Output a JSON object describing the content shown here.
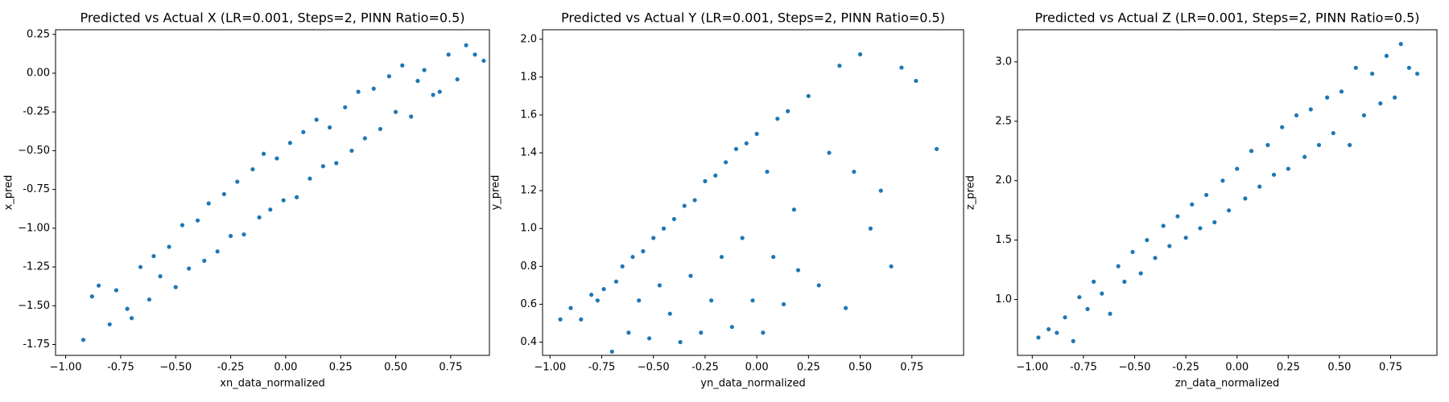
{
  "chart_data": [
    {
      "type": "scatter",
      "title": "Predicted vs Actual X (LR=0.001, Steps=2, PINN Ratio=0.5)",
      "xlabel": "xn_data_normalized",
      "ylabel": "x_pred",
      "color": "#1f77b4",
      "x": [
        -0.92,
        -0.88,
        -0.85,
        -0.8,
        -0.77,
        -0.72,
        -0.7,
        -0.66,
        -0.62,
        -0.6,
        -0.57,
        -0.53,
        -0.5,
        -0.47,
        -0.44,
        -0.4,
        -0.37,
        -0.35,
        -0.31,
        -0.28,
        -0.25,
        -0.22,
        -0.19,
        -0.15,
        -0.12,
        -0.1,
        -0.07,
        -0.04,
        -0.01,
        0.02,
        0.05,
        0.08,
        0.11,
        0.14,
        0.17,
        0.2,
        0.23,
        0.27,
        0.3,
        0.33,
        0.36,
        0.4,
        0.43,
        0.47,
        0.5,
        0.53,
        0.57,
        0.6,
        0.63,
        0.67,
        0.7,
        0.74,
        0.78,
        0.82,
        0.86,
        0.9
      ],
      "y": [
        -1.72,
        -1.44,
        -1.37,
        -1.62,
        -1.4,
        -1.52,
        -1.58,
        -1.25,
        -1.46,
        -1.18,
        -1.31,
        -1.12,
        -1.38,
        -0.98,
        -1.26,
        -0.95,
        -1.21,
        -0.84,
        -1.15,
        -0.78,
        -1.05,
        -0.7,
        -1.04,
        -0.62,
        -0.93,
        -0.52,
        -0.88,
        -0.55,
        -0.82,
        -0.45,
        -0.8,
        -0.38,
        -0.68,
        -0.3,
        -0.6,
        -0.35,
        -0.58,
        -0.22,
        -0.5,
        -0.12,
        -0.42,
        -0.1,
        -0.36,
        -0.02,
        -0.25,
        0.05,
        -0.28,
        -0.05,
        0.02,
        -0.14,
        -0.12,
        0.12,
        -0.04,
        0.18,
        0.12,
        0.08
      ],
      "xlim": [
        -1.046,
        0.926
      ],
      "ylim": [
        -1.82,
        0.28
      ],
      "xticks": [
        {
          "value": -1,
          "label": "−1.00"
        },
        -0.75,
        {
          "value": -0.5,
          "label": "−0.50"
        },
        -0.25,
        {
          "value": 0,
          "label": "0.00"
        },
        0.25,
        {
          "value": 0.5,
          "label": "0.50"
        },
        0.75
      ],
      "yticks": [
        0.25,
        {
          "value": 0,
          "label": "0.00"
        },
        -0.25,
        {
          "value": -0.5,
          "label": "−0.50"
        },
        -0.75,
        {
          "value": -1,
          "label": "−1.00"
        },
        -1.25,
        {
          "value": -1.5,
          "label": "−1.50"
        },
        -1.75
      ]
    },
    {
      "type": "scatter",
      "title": "Predicted vs Actual Y (LR=0.001, Steps=2, PINN Ratio=0.5)",
      "xlabel": "yn_data_normalized",
      "ylabel": "y_pred",
      "color": "#1f77b4",
      "x": [
        -0.95,
        -0.9,
        -0.85,
        -0.8,
        -0.77,
        -0.74,
        -0.7,
        -0.68,
        -0.65,
        -0.62,
        -0.6,
        -0.57,
        -0.55,
        -0.52,
        -0.5,
        -0.47,
        -0.45,
        -0.42,
        -0.4,
        -0.37,
        -0.35,
        -0.32,
        -0.3,
        -0.27,
        -0.25,
        -0.22,
        -0.2,
        -0.17,
        -0.15,
        -0.12,
        -0.1,
        -0.07,
        -0.05,
        -0.02,
        0.0,
        0.03,
        0.05,
        0.08,
        0.1,
        0.13,
        0.15,
        0.18,
        0.2,
        0.25,
        0.3,
        0.35,
        0.4,
        0.43,
        0.47,
        0.5,
        0.55,
        0.6,
        0.65,
        0.7,
        0.77,
        0.87
      ],
      "y": [
        0.52,
        0.58,
        0.52,
        0.65,
        0.62,
        0.68,
        0.35,
        0.72,
        0.8,
        0.45,
        0.85,
        0.62,
        0.88,
        0.42,
        0.95,
        0.7,
        1.0,
        0.55,
        1.05,
        0.4,
        1.12,
        0.75,
        1.15,
        0.45,
        1.25,
        0.62,
        1.28,
        0.85,
        1.35,
        0.48,
        1.42,
        0.95,
        1.45,
        0.62,
        1.5,
        0.45,
        1.3,
        0.85,
        1.58,
        0.6,
        1.62,
        1.1,
        0.78,
        1.7,
        0.7,
        1.4,
        1.86,
        0.58,
        1.3,
        1.92,
        1.0,
        1.2,
        0.8,
        1.85,
        1.78,
        1.42
      ],
      "xlim": [
        -1.036,
        1.0
      ],
      "ylim": [
        0.33,
        2.05
      ],
      "xticks": [
        {
          "value": -1,
          "label": "−1.00"
        },
        -0.75,
        {
          "value": -0.5,
          "label": "−0.50"
        },
        -0.25,
        {
          "value": 0,
          "label": "0.00"
        },
        0.25,
        {
          "value": 0.5,
          "label": "0.50"
        },
        0.75
      ],
      "yticks": [
        0.4,
        0.6,
        0.8,
        {
          "value": 1,
          "label": "1.0"
        },
        1.2,
        1.4,
        1.6,
        1.8,
        {
          "value": 2,
          "label": "2.0"
        }
      ]
    },
    {
      "type": "scatter",
      "title": "Predicted vs Actual Z (LR=0.001, Steps=2, PINN Ratio=0.5)",
      "xlabel": "zn_data_normalized",
      "ylabel": "z_pred",
      "color": "#1f77b4",
      "x": [
        -0.97,
        -0.92,
        -0.88,
        -0.84,
        -0.8,
        -0.77,
        -0.73,
        -0.7,
        -0.66,
        -0.62,
        -0.58,
        -0.55,
        -0.51,
        -0.47,
        -0.44,
        -0.4,
        -0.36,
        -0.33,
        -0.29,
        -0.25,
        -0.22,
        -0.18,
        -0.15,
        -0.11,
        -0.07,
        -0.04,
        0.0,
        0.04,
        0.07,
        0.11,
        0.15,
        0.18,
        0.22,
        0.25,
        0.29,
        0.33,
        0.36,
        0.4,
        0.44,
        0.47,
        0.51,
        0.55,
        0.58,
        0.62,
        0.66,
        0.7,
        0.73,
        0.77,
        0.8,
        0.84,
        0.88
      ],
      "y": [
        0.68,
        0.75,
        0.72,
        0.85,
        0.65,
        1.02,
        0.92,
        1.15,
        1.05,
        0.88,
        1.28,
        1.15,
        1.4,
        1.22,
        1.5,
        1.35,
        1.62,
        1.45,
        1.7,
        1.52,
        1.8,
        1.6,
        1.88,
        1.65,
        2.0,
        1.75,
        2.1,
        1.85,
        2.25,
        1.95,
        2.3,
        2.05,
        2.45,
        2.1,
        2.55,
        2.2,
        2.6,
        2.3,
        2.7,
        2.4,
        2.75,
        2.3,
        2.95,
        2.55,
        2.9,
        2.65,
        3.05,
        2.7,
        3.15,
        2.95,
        2.9
      ],
      "xlim": [
        -1.072,
        0.976
      ],
      "ylim": [
        0.53,
        3.27
      ],
      "xticks": [
        {
          "value": -1,
          "label": "−1.00"
        },
        -0.75,
        {
          "value": -0.5,
          "label": "−0.50"
        },
        -0.25,
        {
          "value": 0,
          "label": "0.00"
        },
        0.25,
        {
          "value": 0.5,
          "label": "0.50"
        },
        0.75
      ],
      "yticks": [
        {
          "value": 1,
          "label": "1.0"
        },
        1.5,
        {
          "value": 2,
          "label": "2.0"
        },
        2.5,
        {
          "value": 3,
          "label": "3.0"
        }
      ]
    }
  ]
}
